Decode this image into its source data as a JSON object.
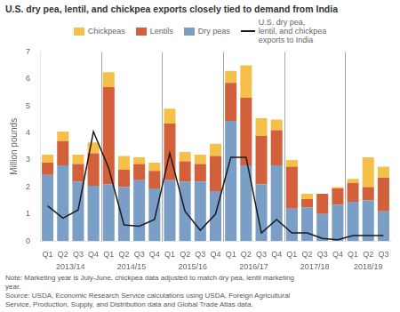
{
  "chart_data": {
    "type": "bar",
    "title": "U.S. dry pea, lentil, and chickpea exports closely tied to demand from India",
    "y_label": "Million pounds",
    "categories": [
      "Q1",
      "Q2",
      "Q3",
      "Q4",
      "Q1",
      "Q2",
      "Q3",
      "Q4",
      "Q1",
      "Q2",
      "Q3",
      "Q4",
      "Q1",
      "Q2",
      "Q3",
      "Q4",
      "Q1",
      "Q2",
      "Q3",
      "Q4",
      "Q1",
      "Q2",
      "Q3"
    ],
    "x_groups": [
      "2013/14",
      "2014/15",
      "2015/16",
      "2016/17",
      "2017/18",
      "2018/19"
    ],
    "series": [
      {
        "name": "Dry peas",
        "color": "#7A9EC6",
        "values": [
          2.45,
          2.8,
          2.2,
          2.05,
          2.1,
          2.0,
          2.25,
          1.95,
          2.25,
          2.2,
          2.2,
          1.85,
          4.45,
          2.8,
          2.1,
          2.8,
          1.2,
          1.25,
          1.0,
          1.35,
          1.45,
          1.5,
          1.1
        ]
      },
      {
        "name": "Lentils",
        "color": "#D2603A",
        "values": [
          0.45,
          0.9,
          0.65,
          1.2,
          3.6,
          0.65,
          0.6,
          0.65,
          2.1,
          0.75,
          0.65,
          1.3,
          1.4,
          2.5,
          1.8,
          1.3,
          1.55,
          0.3,
          0.75,
          0.6,
          0.7,
          0.5,
          1.25
        ]
      },
      {
        "name": "Chickpeas",
        "color": "#F5C04A",
        "values": [
          0.3,
          0.35,
          0.35,
          0.4,
          0.55,
          0.5,
          0.25,
          0.3,
          0.55,
          0.35,
          0.35,
          0.45,
          0.45,
          1.2,
          0.65,
          0.4,
          0.25,
          0.2,
          0.0,
          0.05,
          0.15,
          1.1,
          0.4
        ]
      },
      {
        "name": "U.S. dry pea,\nlentil, and chickpea\nexports to India",
        "type": "line",
        "color": "#1a1a1a",
        "marker": "none",
        "line_style": "solid",
        "values": [
          1.3,
          0.85,
          1.15,
          4.05,
          2.7,
          0.6,
          0.55,
          0.8,
          3.25,
          1.1,
          0.4,
          1.0,
          3.1,
          3.1,
          0.3,
          0.8,
          0.3,
          0.3,
          0.1,
          0.05,
          0.2,
          0.2,
          0.2
        ]
      }
    ],
    "stacked": true,
    "ylim": [
      0,
      7
    ],
    "yticks": [
      0,
      1,
      2,
      3,
      4,
      5,
      6,
      7
    ],
    "grid": false,
    "legend": "top",
    "annotations": [
      "Note: Marketing year is July-June, chickpea data adjusted to match dry pea, lentil marketing\nyear.\nSource: USDA, Economic Research Service calculations using USDA, Foreign Agricultural\nService, Production, Supply, and Distribution data and Global Trade Atlas data."
    ]
  }
}
